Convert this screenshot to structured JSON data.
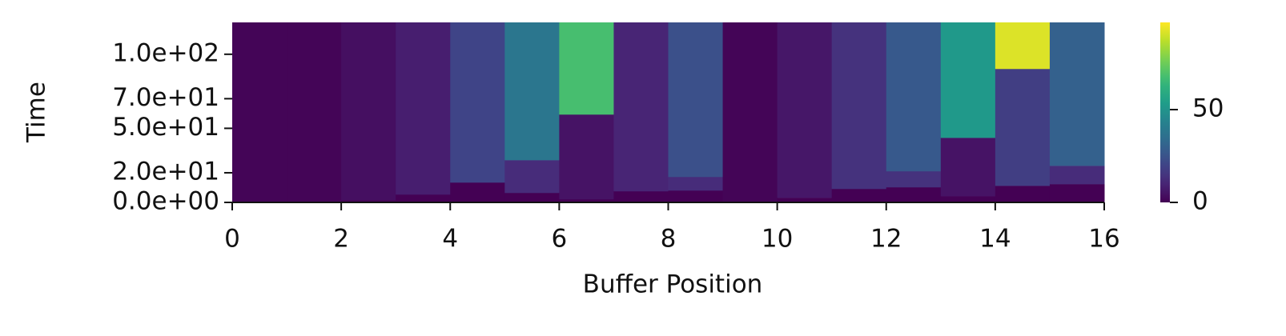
{
  "chart_data": {
    "type": "heatmap",
    "xlabel": "Buffer Position",
    "ylabel": "Time",
    "xlim": [
      0,
      16
    ],
    "xticks": [
      0,
      2,
      4,
      6,
      8,
      10,
      12,
      14,
      16
    ],
    "ylim": [
      0,
      121.5
    ],
    "yticks": [
      {
        "value": 0,
        "label": "0.0e+00"
      },
      {
        "value": 20,
        "label": "2.0e+01"
      },
      {
        "value": 50,
        "label": "5.0e+01"
      },
      {
        "value": 70,
        "label": "7.0e+01"
      },
      {
        "value": 100,
        "label": "1.0e+02"
      }
    ],
    "colormap": "viridis",
    "clim": [
      0,
      97
    ],
    "cticks": [
      0,
      50
    ],
    "columns": [
      {
        "edges": [
          0,
          121.5
        ],
        "values": [
          1
        ]
      },
      {
        "edges": [
          0,
          121.5
        ],
        "values": [
          1
        ]
      },
      {
        "edges": [
          0,
          1.6,
          121.5
        ],
        "values": [
          0,
          4
        ]
      },
      {
        "edges": [
          0,
          5.4,
          121.5
        ],
        "values": [
          0,
          8
        ]
      },
      {
        "edges": [
          0,
          13.5,
          121.5
        ],
        "values": [
          0,
          20
        ]
      },
      {
        "edges": [
          0,
          6.5,
          28.6,
          121.5
        ],
        "values": [
          0,
          12,
          38
        ]
      },
      {
        "edges": [
          0,
          2.2,
          59.4,
          121.5
        ],
        "values": [
          0,
          5,
          68
        ]
      },
      {
        "edges": [
          0,
          7.6,
          121.5
        ],
        "values": [
          0,
          10
        ]
      },
      {
        "edges": [
          0,
          8.1,
          17.3,
          121.5
        ],
        "values": [
          0,
          12,
          24
        ]
      },
      {
        "edges": [
          0,
          121.5
        ],
        "values": [
          1
        ]
      },
      {
        "edges": [
          0,
          3.2,
          121.5
        ],
        "values": [
          0,
          6
        ]
      },
      {
        "edges": [
          0,
          9.2,
          121.5
        ],
        "values": [
          0,
          14
        ]
      },
      {
        "edges": [
          0,
          10.3,
          21.1,
          121.5
        ],
        "values": [
          0,
          14,
          27
        ]
      },
      {
        "edges": [
          0,
          4.3,
          43.7,
          121.5
        ],
        "values": [
          0,
          5,
          52
        ]
      },
      {
        "edges": [
          0,
          11.3,
          90.2,
          121.5
        ],
        "values": [
          0,
          18,
          92
        ]
      },
      {
        "edges": [
          0,
          12.4,
          24.8,
          121.5
        ],
        "values": [
          0,
          12,
          30
        ]
      }
    ]
  }
}
